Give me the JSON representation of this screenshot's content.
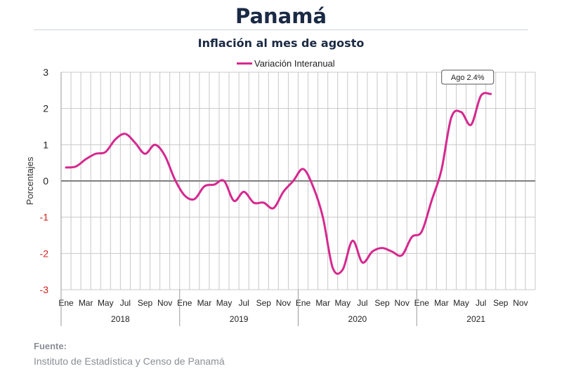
{
  "header": {
    "title": "Panamá",
    "subtitle": "Inflación al mes de agosto"
  },
  "footer": {
    "label": "Fuente:",
    "source": "Instituto de Estadística y Censo de Panamá"
  },
  "colors": {
    "series": "#d6288f",
    "negative_tick": "#d0201b",
    "grid": "#c8c8c8",
    "zero_line": "#7f7f7f"
  },
  "chart_data": {
    "type": "line",
    "title": "Inflación al mes de agosto",
    "xlabel": "",
    "ylabel": "Porcentajes",
    "ylim": [
      -3,
      3
    ],
    "yticks": [
      "3",
      "2",
      "1",
      "0",
      "-1",
      "-2",
      "-3"
    ],
    "grid": true,
    "legend_position": "top-center",
    "years": [
      "2018",
      "2019",
      "2020",
      "2021"
    ],
    "month_tick_labels": [
      "Ene",
      "Mar",
      "May",
      "Jul",
      "Sep",
      "Nov"
    ],
    "annotation": "Ago 2.4%",
    "series": [
      {
        "name": "Variación Interanual",
        "x": [
          "2018-01",
          "2018-02",
          "2018-03",
          "2018-04",
          "2018-05",
          "2018-06",
          "2018-07",
          "2018-08",
          "2018-09",
          "2018-10",
          "2018-11",
          "2018-12",
          "2019-01",
          "2019-02",
          "2019-03",
          "2019-04",
          "2019-05",
          "2019-06",
          "2019-07",
          "2019-08",
          "2019-09",
          "2019-10",
          "2019-11",
          "2019-12",
          "2020-01",
          "2020-02",
          "2020-03",
          "2020-04",
          "2020-05",
          "2020-06",
          "2020-07",
          "2020-08",
          "2020-09",
          "2020-10",
          "2020-11",
          "2020-12",
          "2021-01",
          "2021-02",
          "2021-03",
          "2021-04",
          "2021-05",
          "2021-06",
          "2021-07",
          "2021-08"
        ],
        "values": [
          0.37,
          0.4,
          0.6,
          0.75,
          0.8,
          1.15,
          1.3,
          1.05,
          0.75,
          1.0,
          0.7,
          0.05,
          -0.4,
          -0.5,
          -0.15,
          -0.1,
          0.0,
          -0.55,
          -0.3,
          -0.6,
          -0.6,
          -0.75,
          -0.3,
          0.0,
          0.33,
          -0.15,
          -1.0,
          -2.4,
          -2.45,
          -1.65,
          -2.25,
          -1.95,
          -1.85,
          -1.95,
          -2.05,
          -1.55,
          -1.4,
          -0.55,
          0.3,
          1.75,
          1.9,
          1.55,
          2.35,
          2.4
        ]
      }
    ]
  }
}
